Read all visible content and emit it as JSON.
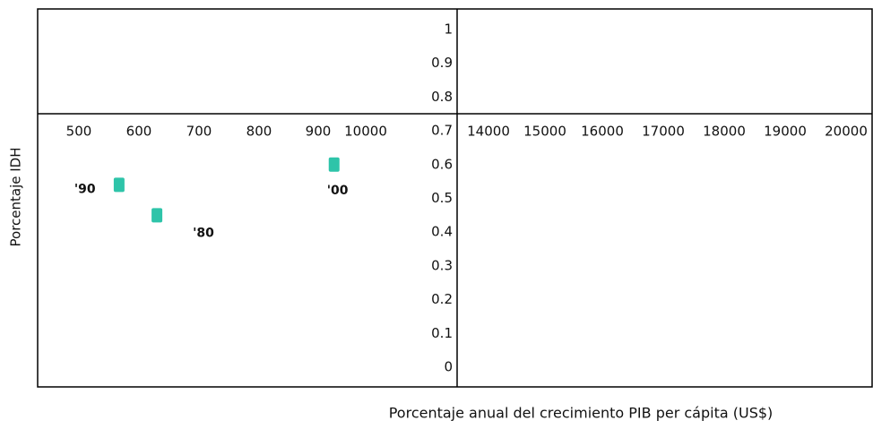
{
  "chart_data": {
    "type": "scatter",
    "x_label": "Porcentaje anual del crecimiento PIB per cápita (US$)",
    "y_label": "Porcentaje IDH",
    "xticks": [
      500,
      600,
      700,
      800,
      900,
      10000,
      14000,
      15000,
      16000,
      17000,
      18000,
      19000,
      20000
    ],
    "ylim": [
      0,
      1
    ],
    "yticks": [
      0,
      0.1,
      0.2,
      0.3,
      0.4,
      0.5,
      0.6,
      0.7,
      0.8,
      0.9,
      1
    ],
    "series": [
      {
        "color": "#2ec4a9",
        "x": [
          567,
          630,
          925
        ],
        "values": [
          0.54,
          0.45,
          0.6
        ],
        "point_labels": [
          "'90",
          "'80",
          "'00"
        ]
      }
    ]
  }
}
